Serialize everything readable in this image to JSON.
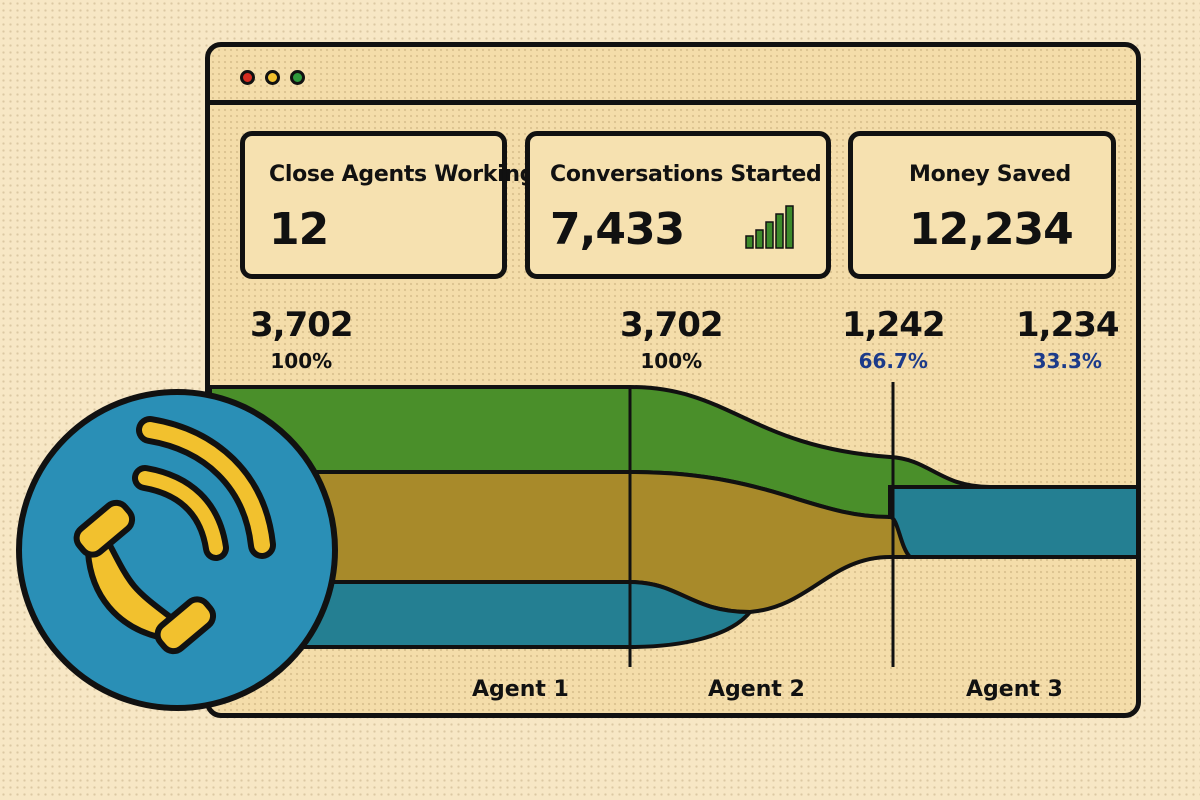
{
  "window": {
    "dot_colors": {
      "red": "#d62d20",
      "yellow": "#f2c12e",
      "green": "#2f9a3c"
    }
  },
  "cards": [
    {
      "label": "Close Agents Working",
      "value": "12"
    },
    {
      "label": "Conversations Started",
      "value": "7,433"
    },
    {
      "label": "Money Saved",
      "value": "12,234"
    }
  ],
  "stats": [
    {
      "number": "3,702",
      "percent": "100%"
    },
    {
      "number": "3,702",
      "percent": "100%"
    },
    {
      "number": "1,242",
      "percent": "66.7%"
    },
    {
      "number": "1,234",
      "percent": "33.3%"
    }
  ],
  "agents": [
    "Agent 1",
    "Agent 2",
    "Agent 3"
  ],
  "colors": {
    "green": "#4a8f2a",
    "olive": "#a88a2a",
    "teal": "#247f92",
    "phone_blue": "#2a8fb6",
    "phone_yellow": "#f2c12e"
  },
  "icons": {
    "phone": "phone-icon",
    "signal": "signal-bars-icon"
  }
}
